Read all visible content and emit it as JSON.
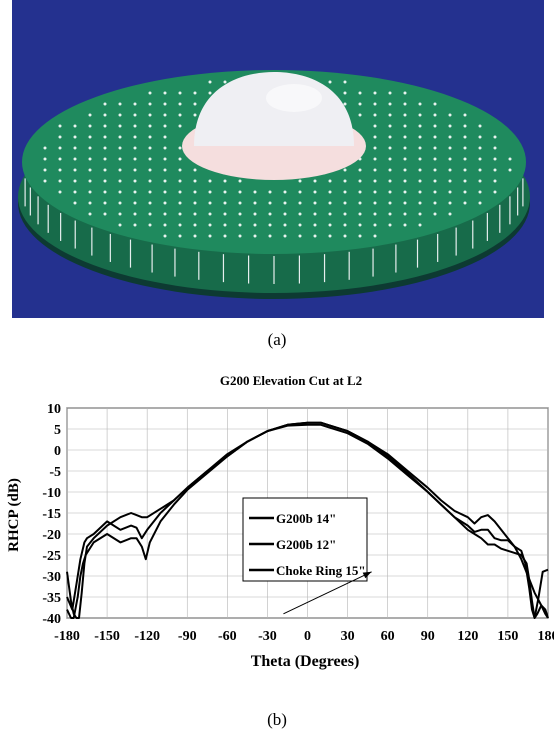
{
  "figure": {
    "caption_a": "(a)",
    "caption_b": "(b)",
    "photo": {
      "subject": "antenna-ground-plane-photo",
      "colors": {
        "background": "#24318f",
        "plate": "#1f8a5e",
        "dome": "#efeff3",
        "dots": "#e8f3ef"
      }
    }
  },
  "chart_data": {
    "type": "line",
    "title": "G200 Elevation Cut at L2",
    "xlabel": "Theta (Degrees)",
    "ylabel": "RHCP (dB)",
    "xlim": [
      -180,
      180
    ],
    "ylim": [
      -40,
      10
    ],
    "xticks": [
      -180,
      -150,
      -120,
      -90,
      -60,
      -30,
      0,
      30,
      60,
      90,
      120,
      150,
      180
    ],
    "yticks": [
      10,
      5,
      0,
      -5,
      -10,
      -15,
      -20,
      -25,
      -30,
      -35,
      -40
    ],
    "xtick_labels": [
      "-180",
      "-150",
      "-120",
      "-90",
      "-60",
      "-30",
      "0",
      "30",
      "60",
      "90",
      "120",
      "150",
      "180"
    ],
    "ytick_labels": [
      "10",
      "5",
      "0",
      "-5",
      "-10",
      "-15",
      "-20",
      "-25",
      "-30",
      "-35",
      "-40"
    ],
    "grid": true,
    "legend_position": "center-right",
    "series": [
      {
        "name": "G200b 14\"",
        "color": "#000000",
        "x": [
          -180,
          -177,
          -175,
          -173,
          -171,
          -169,
          -167,
          -165,
          -160,
          -150,
          -140,
          -132,
          -128,
          -124,
          -120,
          -110,
          -100,
          -90,
          -75,
          -60,
          -45,
          -30,
          -15,
          0,
          10,
          15,
          30,
          45,
          60,
          75,
          90,
          100,
          110,
          120,
          125,
          130,
          135,
          140,
          145,
          150,
          155,
          160,
          165,
          170,
          175,
          178,
          180
        ],
        "y": [
          -29,
          -36,
          -39,
          -40,
          -40,
          -34,
          -27,
          -23,
          -21,
          -18,
          -16,
          -15,
          -15.5,
          -16,
          -16,
          -14,
          -12,
          -9,
          -5,
          -1,
          2,
          4.5,
          6,
          6.5,
          6.5,
          6,
          4.5,
          2,
          -1,
          -5,
          -9,
          -12,
          -14.5,
          -16,
          -17.5,
          -16,
          -15.5,
          -17,
          -19,
          -21,
          -23,
          -26,
          -30,
          -34,
          -37,
          -39,
          -40
        ]
      },
      {
        "name": "G200b 12\"",
        "color": "#000000",
        "x": [
          -180,
          -176,
          -173,
          -170,
          -167,
          -165,
          -160,
          -150,
          -140,
          -132,
          -128,
          -124,
          -120,
          -110,
          -100,
          -90,
          -75,
          -60,
          -45,
          -30,
          -15,
          0,
          10,
          15,
          30,
          45,
          60,
          75,
          90,
          100,
          110,
          120,
          125,
          130,
          135,
          140,
          145,
          150,
          155,
          160,
          163,
          166,
          168,
          170,
          173,
          176,
          180
        ],
        "y": [
          -35,
          -38,
          -32,
          -26,
          -22,
          -21,
          -20,
          -17,
          -19,
          -18,
          -18.5,
          -21,
          -19,
          -15,
          -12,
          -9,
          -5,
          -1.5,
          2,
          4.5,
          6,
          6.5,
          6.5,
          6,
          4.5,
          2,
          -1.5,
          -5.5,
          -10,
          -13,
          -16,
          -18,
          -19.5,
          -19,
          -19,
          -21,
          -21.5,
          -21.5,
          -23,
          -24,
          -27,
          -33,
          -38,
          -40,
          -35,
          -29,
          -28.5
        ]
      },
      {
        "name": "Choke Ring 15\"",
        "color": "#000000",
        "x": [
          -180,
          -177,
          -175,
          -172,
          -170,
          -168,
          -166,
          -160,
          -150,
          -140,
          -132,
          -128,
          -124,
          -121,
          -118,
          -110,
          -100,
          -90,
          -75,
          -60,
          -45,
          -30,
          -15,
          0,
          10,
          15,
          30,
          45,
          60,
          75,
          90,
          100,
          110,
          120,
          125,
          130,
          135,
          140,
          145,
          150,
          155,
          160,
          164,
          166,
          168,
          170,
          172,
          175,
          178,
          180
        ],
        "y": [
          -38,
          -40,
          -40,
          -35,
          -30,
          -27,
          -25,
          -22,
          -20,
          -22,
          -21,
          -21,
          -23,
          -26,
          -22,
          -17,
          -13,
          -9.5,
          -5.5,
          -1.5,
          2,
          4.5,
          5.8,
          6,
          6,
          5.5,
          4,
          1.5,
          -2,
          -6,
          -10,
          -13,
          -16,
          -19,
          -20,
          -21,
          -22.5,
          -22.5,
          -23.5,
          -24,
          -24.5,
          -25,
          -27,
          -31,
          -36,
          -40,
          -39,
          -37,
          -38,
          -40
        ]
      }
    ],
    "annotations": [
      {
        "type": "arrow",
        "from": [
          -18,
          -39
        ],
        "to": [
          48,
          -29
        ]
      }
    ]
  }
}
